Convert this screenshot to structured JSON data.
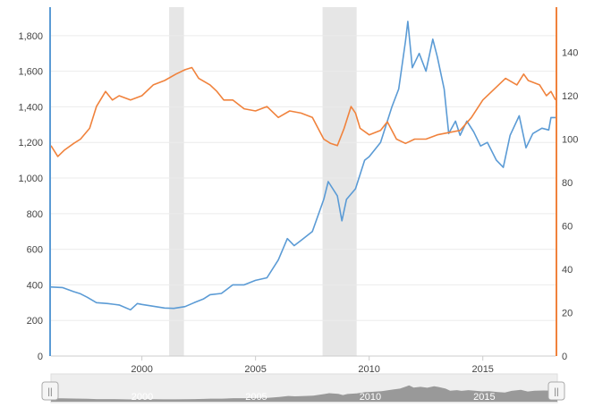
{
  "chart_data": {
    "type": "line",
    "title": "",
    "xlabel": "",
    "ylabel": "",
    "x_axis": {
      "type": "year",
      "range": [
        1996,
        2018.2
      ],
      "ticks": [
        "2000",
        "2005",
        "2010",
        "2015"
      ]
    },
    "y_left": {
      "range": [
        0,
        1950
      ],
      "ticks": [
        "0",
        "200",
        "400",
        "600",
        "800",
        "1,000",
        "1,200",
        "1,400",
        "1,600",
        "1,800"
      ]
    },
    "y_right": {
      "range": [
        0,
        160
      ],
      "ticks": [
        "0",
        "20",
        "40",
        "60",
        "80",
        "100",
        "120",
        "140"
      ]
    },
    "recessions": [
      {
        "start": 2001.2,
        "end": 2001.85
      },
      {
        "start": 2007.95,
        "end": 2009.45
      }
    ],
    "series": [
      {
        "axis": "left",
        "color": "#5b9bd5",
        "points": [
          [
            1996.0,
            388
          ],
          [
            1996.5,
            385
          ],
          [
            1997.0,
            362
          ],
          [
            1997.3,
            350
          ],
          [
            1997.6,
            330
          ],
          [
            1998.0,
            300
          ],
          [
            1998.5,
            295
          ],
          [
            1999.0,
            287
          ],
          [
            1999.5,
            260
          ],
          [
            1999.8,
            295
          ],
          [
            2000.0,
            290
          ],
          [
            2000.5,
            280
          ],
          [
            2001.0,
            270
          ],
          [
            2001.4,
            268
          ],
          [
            2001.9,
            278
          ],
          [
            2002.3,
            300
          ],
          [
            2002.7,
            320
          ],
          [
            2003.0,
            345
          ],
          [
            2003.5,
            352
          ],
          [
            2004.0,
            400
          ],
          [
            2004.5,
            400
          ],
          [
            2005.0,
            425
          ],
          [
            2005.5,
            440
          ],
          [
            2006.0,
            540
          ],
          [
            2006.4,
            660
          ],
          [
            2006.7,
            620
          ],
          [
            2007.0,
            650
          ],
          [
            2007.5,
            700
          ],
          [
            2008.0,
            880
          ],
          [
            2008.2,
            980
          ],
          [
            2008.6,
            900
          ],
          [
            2008.8,
            760
          ],
          [
            2009.0,
            880
          ],
          [
            2009.4,
            940
          ],
          [
            2009.8,
            1100
          ],
          [
            2010.0,
            1120
          ],
          [
            2010.5,
            1200
          ],
          [
            2011.0,
            1400
          ],
          [
            2011.3,
            1500
          ],
          [
            2011.6,
            1770
          ],
          [
            2011.7,
            1880
          ],
          [
            2011.9,
            1620
          ],
          [
            2012.2,
            1700
          ],
          [
            2012.5,
            1600
          ],
          [
            2012.8,
            1780
          ],
          [
            2013.0,
            1680
          ],
          [
            2013.3,
            1500
          ],
          [
            2013.5,
            1250
          ],
          [
            2013.8,
            1320
          ],
          [
            2014.0,
            1240
          ],
          [
            2014.3,
            1320
          ],
          [
            2014.6,
            1260
          ],
          [
            2014.9,
            1180
          ],
          [
            2015.2,
            1200
          ],
          [
            2015.6,
            1100
          ],
          [
            2015.9,
            1060
          ],
          [
            2016.2,
            1240
          ],
          [
            2016.6,
            1350
          ],
          [
            2016.9,
            1170
          ],
          [
            2017.2,
            1250
          ],
          [
            2017.6,
            1280
          ],
          [
            2017.9,
            1270
          ],
          [
            2018.0,
            1340
          ],
          [
            2018.2,
            1340
          ]
        ]
      },
      {
        "axis": "right",
        "color": "#f0823c",
        "points": [
          [
            1996.0,
            97
          ],
          [
            1996.3,
            92
          ],
          [
            1996.6,
            95
          ],
          [
            1997.0,
            98
          ],
          [
            1997.3,
            100
          ],
          [
            1997.7,
            105
          ],
          [
            1998.0,
            115
          ],
          [
            1998.4,
            122
          ],
          [
            1998.7,
            118
          ],
          [
            1999.0,
            120
          ],
          [
            1999.5,
            118
          ],
          [
            2000.0,
            120
          ],
          [
            2000.5,
            125
          ],
          [
            2001.0,
            127
          ],
          [
            2001.5,
            130
          ],
          [
            2001.9,
            132
          ],
          [
            2002.2,
            133
          ],
          [
            2002.5,
            128
          ],
          [
            2003.0,
            125
          ],
          [
            2003.3,
            122
          ],
          [
            2003.6,
            118
          ],
          [
            2004.0,
            118
          ],
          [
            2004.5,
            114
          ],
          [
            2005.0,
            113
          ],
          [
            2005.5,
            115
          ],
          [
            2006.0,
            110
          ],
          [
            2006.5,
            113
          ],
          [
            2007.0,
            112
          ],
          [
            2007.5,
            110
          ],
          [
            2008.0,
            100
          ],
          [
            2008.3,
            98
          ],
          [
            2008.6,
            97
          ],
          [
            2008.9,
            105
          ],
          [
            2009.2,
            115
          ],
          [
            2009.4,
            112
          ],
          [
            2009.6,
            105
          ],
          [
            2010.0,
            102
          ],
          [
            2010.5,
            104
          ],
          [
            2010.8,
            108
          ],
          [
            2011.2,
            100
          ],
          [
            2011.6,
            98
          ],
          [
            2012.0,
            100
          ],
          [
            2012.5,
            100
          ],
          [
            2013.0,
            102
          ],
          [
            2013.5,
            103
          ],
          [
            2014.0,
            104
          ],
          [
            2014.5,
            110
          ],
          [
            2015.0,
            118
          ],
          [
            2015.5,
            123
          ],
          [
            2016.0,
            128
          ],
          [
            2016.5,
            125
          ],
          [
            2016.8,
            130
          ],
          [
            2017.0,
            127
          ],
          [
            2017.5,
            125
          ],
          [
            2017.8,
            120
          ],
          [
            2018.0,
            122
          ],
          [
            2018.2,
            118
          ]
        ]
      }
    ],
    "navigator": {
      "range": [
        1996,
        2018.2
      ],
      "labels": [
        "2000",
        "2005",
        "2010",
        "2015"
      ],
      "handle_glyph": "||"
    }
  }
}
